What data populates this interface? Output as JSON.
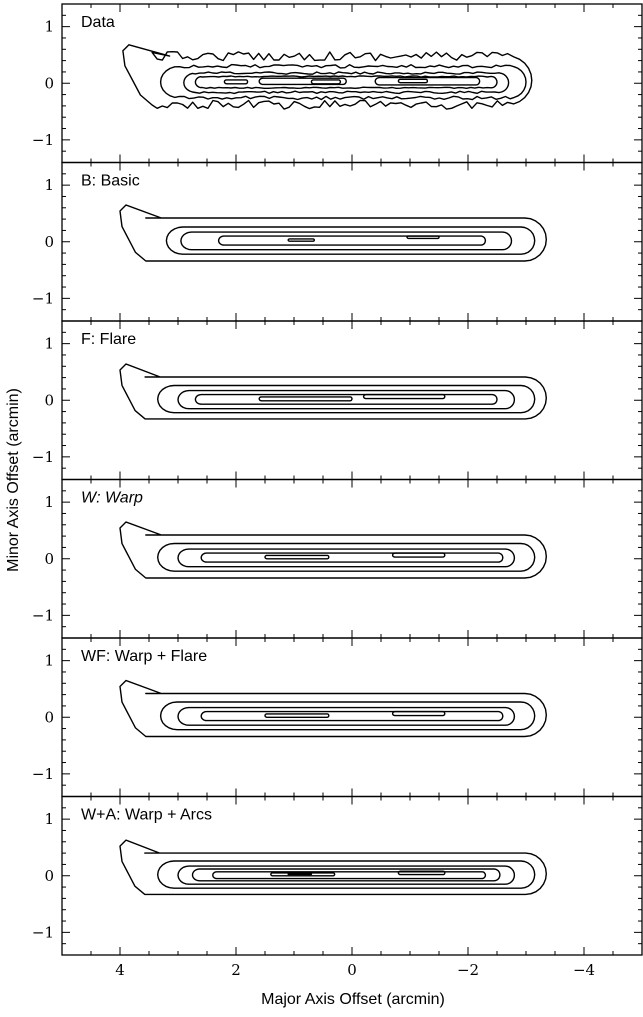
{
  "chart_data": {
    "type": "contour",
    "xlabel": "Major Axis Offset (arcmin)",
    "ylabel": "Minor Axis Offset (arcmin)",
    "xlim": [
      5,
      -5
    ],
    "ylim": [
      -1.4,
      1.4
    ],
    "x_ticks": [
      4,
      2,
      0,
      -2,
      -4
    ],
    "x_tick_labels": [
      "4",
      "2",
      "0",
      "−2",
      "−4"
    ],
    "y_ticks": [
      1,
      0,
      -1
    ],
    "y_tick_labels": [
      "1",
      "0",
      "−1"
    ],
    "panels": [
      {
        "label": "Data",
        "italic": false,
        "contours": [
          {
            "xl": 3.95,
            "xr": -3.1,
            "yt": 0.48,
            "yb": -0.38,
            "tip": 0.25,
            "jag": 0.08
          },
          {
            "xl": 3.3,
            "xr": -3.0,
            "yt": 0.3,
            "yb": -0.26,
            "tip": 0.0,
            "jag": 0.03
          },
          {
            "xl": 2.9,
            "xr": -2.7,
            "yt": 0.18,
            "yb": -0.16,
            "tip": 0.0,
            "jag": 0.02
          },
          {
            "xl": 2.7,
            "xr": -2.5,
            "yt": 0.12,
            "yb": -0.08,
            "tip": 0.0,
            "jag": 0.01
          },
          {
            "xl": 1.6,
            "xr": 0.1,
            "yt": 0.09,
            "yb": -0.02,
            "tip": 0.0,
            "jag": 0.0
          },
          {
            "xl": -0.4,
            "xr": -2.2,
            "yt": 0.1,
            "yb": -0.03,
            "tip": 0.0,
            "jag": 0.0
          },
          {
            "xl": 2.2,
            "xr": 1.8,
            "yt": 0.06,
            "yb": -0.01,
            "tip": 0.0,
            "jag": 0.0
          },
          {
            "xl": 0.7,
            "xr": 0.2,
            "yt": 0.06,
            "yb": -0.01,
            "tip": 0.0,
            "jag": 0.0
          },
          {
            "xl": -0.8,
            "xr": -1.3,
            "yt": 0.07,
            "yb": 0.01,
            "tip": 0.0,
            "jag": 0.0
          }
        ]
      },
      {
        "label": "B: Basic",
        "italic": false,
        "contours": [
          {
            "xl": 4.0,
            "xr": -3.35,
            "yt": 0.42,
            "yb": -0.34,
            "tip": 0.28,
            "jag": 0
          },
          {
            "xl": 3.2,
            "xr": -3.15,
            "yt": 0.26,
            "yb": -0.22,
            "tip": 0.0,
            "jag": 0
          },
          {
            "xl": 2.95,
            "xr": -2.75,
            "yt": 0.17,
            "yb": -0.14,
            "tip": 0.0,
            "jag": 0
          },
          {
            "xl": 2.3,
            "xr": -2.3,
            "yt": 0.1,
            "yb": -0.06,
            "tip": 0.0,
            "jag": 0
          },
          {
            "xl": 1.1,
            "xr": 0.65,
            "yt": 0.05,
            "yb": 0.01,
            "tip": 0.0,
            "jag": 0
          },
          {
            "xl": -0.95,
            "xr": -1.5,
            "yt": 0.1,
            "yb": 0.06,
            "tip": 0.0,
            "jag": 0
          }
        ]
      },
      {
        "label": "F: Flare",
        "italic": false,
        "contours": [
          {
            "xl": 4.0,
            "xr": -3.35,
            "yt": 0.41,
            "yb": -0.33,
            "tip": 0.28,
            "jag": 0
          },
          {
            "xl": 3.35,
            "xr": -3.15,
            "yt": 0.26,
            "yb": -0.22,
            "tip": 0.0,
            "jag": 0
          },
          {
            "xl": 3.0,
            "xr": -2.8,
            "yt": 0.17,
            "yb": -0.15,
            "tip": 0.0,
            "jag": 0
          },
          {
            "xl": 2.7,
            "xr": -2.5,
            "yt": 0.1,
            "yb": -0.07,
            "tip": 0.0,
            "jag": 0
          },
          {
            "xl": 1.6,
            "xr": 0.0,
            "yt": 0.06,
            "yb": -0.01,
            "tip": 0.0,
            "jag": 0
          },
          {
            "xl": -0.2,
            "xr": -1.6,
            "yt": 0.1,
            "yb": 0.03,
            "tip": 0.0,
            "jag": 0
          }
        ]
      },
      {
        "label": "W: Warp",
        "italic": true,
        "contours": [
          {
            "xl": 4.0,
            "xr": -3.35,
            "yt": 0.42,
            "yb": -0.34,
            "tip": 0.28,
            "jag": 0
          },
          {
            "xl": 3.35,
            "xr": -3.15,
            "yt": 0.27,
            "yb": -0.22,
            "tip": 0.0,
            "jag": 0
          },
          {
            "xl": 3.0,
            "xr": -2.8,
            "yt": 0.17,
            "yb": -0.14,
            "tip": 0.0,
            "jag": 0
          },
          {
            "xl": 2.6,
            "xr": -2.6,
            "yt": 0.1,
            "yb": -0.06,
            "tip": 0.0,
            "jag": 0
          },
          {
            "xl": 1.5,
            "xr": 0.4,
            "yt": 0.06,
            "yb": 0.0,
            "tip": 0.0,
            "jag": 0
          },
          {
            "xl": -0.7,
            "xr": -1.6,
            "yt": 0.1,
            "yb": 0.03,
            "tip": 0.0,
            "jag": 0
          }
        ]
      },
      {
        "label": "WF: Warp + Flare",
        "italic": false,
        "contours": [
          {
            "xl": 4.0,
            "xr": -3.35,
            "yt": 0.42,
            "yb": -0.34,
            "tip": 0.28,
            "jag": 0
          },
          {
            "xl": 3.3,
            "xr": -3.15,
            "yt": 0.27,
            "yb": -0.22,
            "tip": 0.0,
            "jag": 0
          },
          {
            "xl": 3.0,
            "xr": -2.8,
            "yt": 0.17,
            "yb": -0.14,
            "tip": 0.0,
            "jag": 0
          },
          {
            "xl": 2.6,
            "xr": -2.6,
            "yt": 0.1,
            "yb": -0.06,
            "tip": 0.0,
            "jag": 0
          },
          {
            "xl": 1.5,
            "xr": 0.4,
            "yt": 0.06,
            "yb": 0.0,
            "tip": 0.0,
            "jag": 0
          },
          {
            "xl": -0.7,
            "xr": -1.6,
            "yt": 0.1,
            "yb": 0.03,
            "tip": 0.0,
            "jag": 0
          }
        ]
      },
      {
        "label": "W+A: Warp + Arcs",
        "italic": false,
        "contours": [
          {
            "xl": 4.0,
            "xr": -3.35,
            "yt": 0.4,
            "yb": -0.33,
            "tip": 0.28,
            "jag": 0
          },
          {
            "xl": 3.35,
            "xr": -3.15,
            "yt": 0.26,
            "yb": -0.22,
            "tip": 0.0,
            "jag": 0
          },
          {
            "xl": 3.0,
            "xr": -2.8,
            "yt": 0.17,
            "yb": -0.15,
            "tip": 0.0,
            "jag": 0
          },
          {
            "xl": 2.75,
            "xr": -2.55,
            "yt": 0.12,
            "yb": -0.09,
            "tip": 0.0,
            "jag": 0
          },
          {
            "xl": 2.4,
            "xr": -2.3,
            "yt": 0.07,
            "yb": -0.05,
            "tip": 0.0,
            "jag": 0
          },
          {
            "xl": 1.4,
            "xr": 0.3,
            "yt": 0.05,
            "yb": 0.0,
            "tip": 0.0,
            "jag": 0
          },
          {
            "xl": -0.8,
            "xr": -1.6,
            "yt": 0.08,
            "yb": 0.02,
            "tip": 0.0,
            "jag": 0
          },
          {
            "xl": 1.1,
            "xr": 0.7,
            "yt": 0.04,
            "yb": 0.02,
            "tip": 0.0,
            "jag": 0
          }
        ]
      }
    ]
  }
}
